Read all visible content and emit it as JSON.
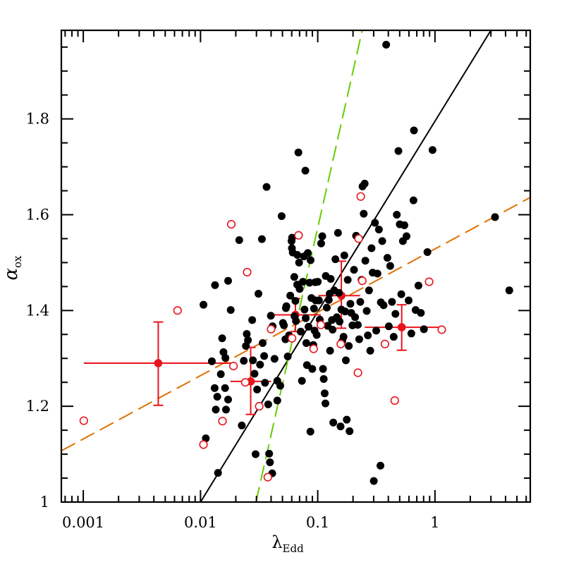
{
  "chart_data": {
    "type": "scatter",
    "xscale": "log",
    "xlim": [
      0.00065,
      6.5
    ],
    "ylim": [
      1.0,
      1.985
    ],
    "xlabel": {
      "main": "λ",
      "sub": "Edd"
    },
    "ylabel": {
      "main": "α",
      "sub": "ox"
    },
    "xticklabels": [
      {
        "value": 0.001,
        "label": "0.001"
      },
      {
        "value": 0.01,
        "label": "0.01"
      },
      {
        "value": 0.1,
        "label": "0.1"
      },
      {
        "value": 1,
        "label": "1"
      }
    ],
    "yticklabels": [
      {
        "value": 1.0,
        "label": "1"
      },
      {
        "value": 1.2,
        "label": "1.2"
      },
      {
        "value": 1.4,
        "label": "1.4"
      },
      {
        "value": 1.6,
        "label": "1.6"
      },
      {
        "value": 1.8,
        "label": "1.8"
      }
    ],
    "colors": {
      "filled": "#000000",
      "open": "#e8141c",
      "binned": "#e8141c",
      "black_fit": "#000000",
      "green_fit": "#66cc00",
      "orange_fit": "#e07000"
    },
    "series": [
      {
        "marker": "filled-circle",
        "points": [
          [
            0.0106,
            1.412
          ],
          [
            0.0133,
            1.453
          ],
          [
            0.0111,
            1.133
          ],
          [
            0.0141,
            1.061
          ],
          [
            0.0153,
            1.342
          ],
          [
            0.0172,
            1.462
          ],
          [
            0.0125,
            1.294
          ],
          [
            0.0132,
            1.238
          ],
          [
            0.0157,
            1.313
          ],
          [
            0.0135,
            1.193
          ],
          [
            0.0149,
            1.267
          ],
          [
            0.0163,
            1.301
          ],
          [
            0.0162,
            1.238
          ],
          [
            0.0139,
            1.22
          ],
          [
            0.0172,
            1.214
          ],
          [
            0.0181,
            1.401
          ],
          [
            0.0165,
            1.193
          ],
          [
            0.0192,
            1.284
          ],
          [
            0.0225,
            1.16
          ],
          [
            0.0214,
            1.547
          ],
          [
            0.0234,
            1.295
          ],
          [
            0.0248,
            1.351
          ],
          [
            0.0244,
            1.326
          ],
          [
            0.0254,
            1.338
          ],
          [
            0.0276,
            1.38
          ],
          [
            0.028,
            1.296
          ],
          [
            0.0289,
            1.268
          ],
          [
            0.0295,
            1.1
          ],
          [
            0.0304,
            1.235
          ],
          [
            0.0312,
            1.435
          ],
          [
            0.0322,
            1.287
          ],
          [
            0.0334,
            1.549
          ],
          [
            0.0349,
            1.305
          ],
          [
            0.0366,
            1.658
          ],
          [
            0.0339,
            1.332
          ],
          [
            0.0355,
            1.249
          ],
          [
            0.0378,
            1.204
          ],
          [
            0.0385,
            1.101
          ],
          [
            0.0391,
            1.083
          ],
          [
            0.0398,
            1.389
          ],
          [
            0.0412,
            1.367
          ],
          [
            0.0428,
            1.299
          ],
          [
            0.0409,
            1.06
          ],
          [
            0.0452,
            1.212
          ],
          [
            0.0452,
            1.253
          ],
          [
            0.0479,
            1.243
          ],
          [
            0.0492,
            1.597
          ],
          [
            0.0505,
            1.374
          ],
          [
            0.0515,
            1.369
          ],
          [
            0.053,
            1.34
          ],
          [
            0.054,
            1.409
          ],
          [
            0.0535,
            1.405
          ],
          [
            0.0555,
            1.304
          ],
          [
            0.0569,
            1.348
          ],
          [
            0.0583,
            1.431
          ],
          [
            0.0598,
            1.545
          ],
          [
            0.0602,
            1.53
          ],
          [
            0.0604,
            1.552
          ],
          [
            0.0612,
            1.521
          ],
          [
            0.0631,
            1.47
          ],
          [
            0.0634,
            1.388
          ],
          [
            0.0645,
            1.42
          ],
          [
            0.0652,
            1.378
          ],
          [
            0.0668,
            1.454
          ],
          [
            0.067,
            1.516
          ],
          [
            0.0684,
            1.73
          ],
          [
            0.0693,
            1.5
          ],
          [
            0.0701,
            1.445
          ],
          [
            0.0716,
            1.356
          ],
          [
            0.0733,
            1.253
          ],
          [
            0.0747,
            1.46
          ],
          [
            0.0762,
            1.513
          ],
          [
            0.0771,
            1.402
          ],
          [
            0.0784,
            1.692
          ],
          [
            0.079,
            1.384
          ],
          [
            0.0799,
            1.332
          ],
          [
            0.0809,
            1.286
          ],
          [
            0.0823,
            1.52
          ],
          [
            0.0835,
            1.366
          ],
          [
            0.0851,
            1.458
          ],
          [
            0.0866,
            1.147
          ],
          [
            0.0869,
            1.505
          ],
          [
            0.0883,
            1.426
          ],
          [
            0.0898,
            1.278
          ],
          [
            0.0917,
            1.328
          ],
          [
            0.0929,
            1.404
          ],
          [
            0.094,
            1.358
          ],
          [
            0.0951,
            1.459
          ],
          [
            0.0959,
            1.421
          ],
          [
            0.098,
            1.349
          ],
          [
            0.1,
            1.46
          ],
          [
            0.1024,
            1.421
          ],
          [
            0.1041,
            1.381
          ],
          [
            0.1069,
            1.54
          ],
          [
            0.1093,
            1.555
          ],
          [
            0.1109,
            1.278
          ],
          [
            0.1125,
            1.257
          ],
          [
            0.1146,
            1.227
          ],
          [
            0.1163,
            1.206
          ],
          [
            0.1171,
            1.472
          ],
          [
            0.1195,
            1.406
          ],
          [
            0.1215,
            1.368
          ],
          [
            0.1242,
            1.422
          ],
          [
            0.1265,
            1.435
          ],
          [
            0.1274,
            1.316
          ],
          [
            0.129,
            1.466
          ],
          [
            0.1322,
            1.38
          ],
          [
            0.1339,
            1.36
          ],
          [
            0.1357,
            1.166
          ],
          [
            0.1381,
            1.442
          ],
          [
            0.1415,
            1.507
          ],
          [
            0.1455,
            1.386
          ],
          [
            0.1488,
            1.562
          ],
          [
            0.1513,
            1.437
          ],
          [
            0.1535,
            1.377
          ],
          [
            0.1565,
            1.158
          ],
          [
            0.159,
            1.402
          ],
          [
            0.162,
            1.336
          ],
          [
            0.166,
            1.345
          ],
          [
            0.1686,
            1.515
          ],
          [
            0.1713,
            1.398
          ],
          [
            0.1738,
            1.296
          ],
          [
            0.1768,
            1.172
          ],
          [
            0.1802,
            1.464
          ],
          [
            0.184,
            1.326
          ],
          [
            0.1868,
            1.148
          ],
          [
            0.1899,
            1.414
          ],
          [
            0.1931,
            1.395
          ],
          [
            0.1977,
            1.369
          ],
          [
            0.2038,
            1.485
          ],
          [
            0.2083,
            1.386
          ],
          [
            0.2124,
            1.556
          ],
          [
            0.2197,
            1.37
          ],
          [
            0.2258,
            1.34
          ],
          [
            0.2306,
            1.418
          ],
          [
            0.2365,
            1.464
          ],
          [
            0.241,
            1.659
          ],
          [
            0.2467,
            1.602
          ],
          [
            0.2514,
            1.665
          ],
          [
            0.2547,
            1.504
          ],
          [
            0.2617,
            1.399
          ],
          [
            0.2677,
            1.348
          ],
          [
            0.2739,
            1.442
          ],
          [
            0.2806,
            1.316
          ],
          [
            0.2876,
            1.53
          ],
          [
            0.2942,
            1.479
          ],
          [
            0.3008,
            1.044
          ],
          [
            0.3077,
            1.583
          ],
          [
            0.3155,
            1.358
          ],
          [
            0.3233,
            1.477
          ],
          [
            0.3325,
            1.569
          ],
          [
            0.3426,
            1.076
          ],
          [
            0.3455,
            1.417
          ],
          [
            0.355,
            1.545
          ],
          [
            0.3643,
            1.411
          ],
          [
            0.3836,
            1.955
          ],
          [
            0.3928,
            1.51
          ],
          [
            0.404,
            1.367
          ],
          [
            0.4152,
            1.493
          ],
          [
            0.4298,
            1.418
          ],
          [
            0.4445,
            1.345
          ],
          [
            0.4599,
            1.393
          ],
          [
            0.4725,
            1.6
          ],
          [
            0.4879,
            1.733
          ],
          [
            0.501,
            1.58
          ],
          [
            0.5161,
            1.434
          ],
          [
            0.5326,
            1.545
          ],
          [
            0.5487,
            1.578
          ],
          [
            0.5718,
            1.555
          ],
          [
            0.596,
            1.421
          ],
          [
            0.6286,
            1.352
          ],
          [
            0.6557,
            1.63
          ],
          [
            0.6617,
            1.776
          ],
          [
            0.6837,
            1.401
          ],
          [
            0.7227,
            1.452
          ],
          [
            0.7579,
            1.395
          ],
          [
            0.8047,
            1.361
          ],
          [
            0.8622,
            1.522
          ],
          [
            0.9534,
            1.735
          ],
          [
            3.252,
            1.595
          ],
          [
            4.305,
            1.442
          ]
        ]
      },
      {
        "marker": "open-circle",
        "points": [
          [
            0.00101,
            1.17
          ],
          [
            0.00637,
            1.4
          ],
          [
            0.0106,
            1.12
          ],
          [
            0.0154,
            1.169
          ],
          [
            0.0183,
            1.58
          ],
          [
            0.0191,
            1.284
          ],
          [
            0.0241,
            1.25
          ],
          [
            0.025,
            1.48
          ],
          [
            0.0317,
            1.2
          ],
          [
            0.0375,
            1.052
          ],
          [
            0.04,
            1.361
          ],
          [
            0.0603,
            1.342
          ],
          [
            0.0686,
            1.557
          ],
          [
            0.0922,
            1.32
          ],
          [
            0.1063,
            1.37
          ],
          [
            0.1573,
            1.33
          ],
          [
            0.2203,
            1.27
          ],
          [
            0.2234,
            1.55
          ],
          [
            0.2327,
            1.638
          ],
          [
            0.2398,
            1.462
          ],
          [
            0.3743,
            1.33
          ],
          [
            0.4534,
            1.212
          ],
          [
            0.8918,
            1.46
          ],
          [
            1.1422,
            1.36
          ]
        ]
      }
    ],
    "binned": [
      {
        "x": 0.00436,
        "y": 1.29,
        "xerr": [
          0.00101,
          0.0195
        ],
        "yerr": [
          1.202,
          1.376
        ]
      },
      {
        "x": 0.0268,
        "y": 1.252,
        "xerr": [
          0.018,
          0.04
        ],
        "yerr": [
          1.183,
          1.323
        ]
      },
      {
        "x": 0.0645,
        "y": 1.391,
        "xerr": [
          0.0386,
          0.1063
        ],
        "yerr": [
          1.356,
          1.425
        ]
      },
      {
        "x": 0.159,
        "y": 1.431,
        "xerr": [
          0.1014,
          0.23
        ],
        "yerr": [
          1.363,
          1.503
        ]
      },
      {
        "x": 0.5203,
        "y": 1.365,
        "xerr": [
          0.252,
          1.1217
        ],
        "yerr": [
          1.317,
          1.412
        ]
      }
    ],
    "lines": [
      {
        "style": "solid",
        "color_key": "black_fit",
        "from": [
          0.01,
          1.0
        ],
        "to": [
          3.0,
          1.985
        ]
      },
      {
        "style": "dashed",
        "color_key": "green_fit",
        "from": [
          0.0297,
          1.0
        ],
        "to": [
          0.2395,
          1.985
        ]
      },
      {
        "style": "dashed",
        "color_key": "orange_fit",
        "from": [
          0.00065,
          1.107
        ],
        "to": [
          6.5,
          1.636
        ]
      }
    ]
  }
}
